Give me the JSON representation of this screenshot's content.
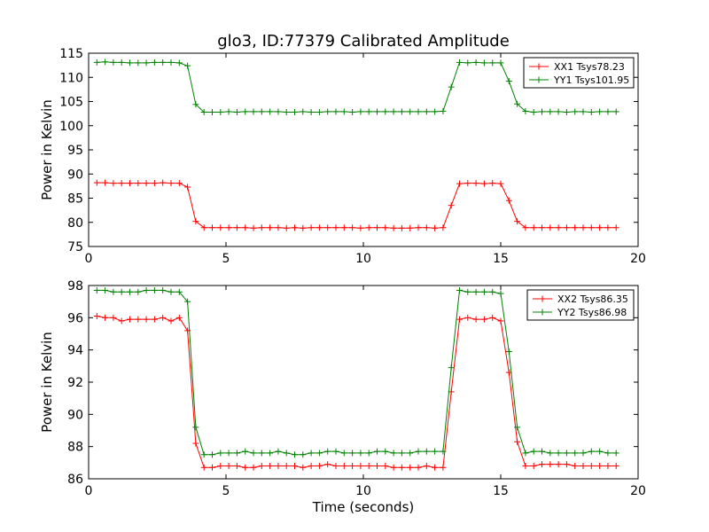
{
  "chart_data": [
    {
      "type": "line",
      "title": "glo3, ID:77379 Calibrated Amplitude",
      "xlabel": "",
      "ylabel": "Power in Kelvin",
      "xlim": [
        0,
        20
      ],
      "ylim": [
        75,
        115
      ],
      "xticks": [
        "0",
        "5",
        "10",
        "15",
        "20"
      ],
      "yticks": [
        "75",
        "80",
        "85",
        "90",
        "95",
        "100",
        "105",
        "110",
        "115"
      ],
      "grid": false,
      "legend": "top-right",
      "series": [
        {
          "name": "XX1 Tsys78.23",
          "color": "#ff0000",
          "x": [
            0.3,
            0.6,
            0.9,
            1.2,
            1.5,
            1.8,
            2.1,
            2.4,
            2.7,
            3.0,
            3.3,
            3.6,
            3.9,
            4.2,
            4.5,
            4.8,
            5.1,
            5.4,
            5.7,
            6.0,
            6.3,
            6.6,
            6.9,
            7.2,
            7.5,
            7.8,
            8.1,
            8.4,
            8.7,
            9.0,
            9.3,
            9.6,
            9.9,
            10.2,
            10.5,
            10.8,
            11.1,
            11.4,
            11.7,
            12.0,
            12.3,
            12.6,
            12.9,
            13.2,
            13.5,
            13.8,
            14.1,
            14.4,
            14.7,
            15.0,
            15.3,
            15.6,
            15.9,
            16.2,
            16.5,
            16.8,
            17.1,
            17.4,
            17.7,
            18.0,
            18.3,
            18.6,
            18.9,
            19.2
          ],
          "y": [
            88.2,
            88.2,
            88.1,
            88.1,
            88.1,
            88.1,
            88.1,
            88.1,
            88.2,
            88.1,
            88.1,
            87.3,
            80.2,
            78.9,
            78.9,
            78.9,
            78.9,
            78.9,
            78.9,
            78.8,
            78.9,
            78.9,
            78.9,
            78.8,
            78.9,
            78.8,
            78.9,
            78.9,
            78.9,
            78.9,
            78.9,
            78.9,
            78.8,
            78.9,
            78.9,
            78.9,
            78.8,
            78.8,
            78.8,
            78.9,
            78.9,
            78.8,
            78.9,
            83.5,
            88.0,
            88.1,
            88.1,
            88.0,
            88.1,
            88.0,
            84.5,
            80.2,
            78.9,
            78.9,
            78.9,
            78.9,
            78.9,
            78.9,
            78.9,
            78.9,
            78.9,
            78.9,
            78.9,
            78.9
          ]
        },
        {
          "name": "YY1 Tsys101.95",
          "color": "#008000",
          "x": [
            0.3,
            0.6,
            0.9,
            1.2,
            1.5,
            1.8,
            2.1,
            2.4,
            2.7,
            3.0,
            3.3,
            3.6,
            3.9,
            4.2,
            4.5,
            4.8,
            5.1,
            5.4,
            5.7,
            6.0,
            6.3,
            6.6,
            6.9,
            7.2,
            7.5,
            7.8,
            8.1,
            8.4,
            8.7,
            9.0,
            9.3,
            9.6,
            9.9,
            10.2,
            10.5,
            10.8,
            11.1,
            11.4,
            11.7,
            12.0,
            12.3,
            12.6,
            12.9,
            13.2,
            13.5,
            13.8,
            14.1,
            14.4,
            14.7,
            15.0,
            15.3,
            15.6,
            15.9,
            16.2,
            16.5,
            16.8,
            17.1,
            17.4,
            17.7,
            18.0,
            18.3,
            18.6,
            18.9,
            19.2
          ],
          "y": [
            113.1,
            113.2,
            113.1,
            113.1,
            113.0,
            113.0,
            113.0,
            113.1,
            113.1,
            113.1,
            113.0,
            112.4,
            104.4,
            102.8,
            102.8,
            102.8,
            102.9,
            102.8,
            102.9,
            102.9,
            102.9,
            102.9,
            102.9,
            102.8,
            102.8,
            102.9,
            102.8,
            102.8,
            102.9,
            102.9,
            102.9,
            102.8,
            102.9,
            102.9,
            102.9,
            102.9,
            102.9,
            102.9,
            102.9,
            102.9,
            102.9,
            102.9,
            103.0,
            108.0,
            113.1,
            113.0,
            113.1,
            113.0,
            113.0,
            113.0,
            109.2,
            104.5,
            103.0,
            102.8,
            102.9,
            102.9,
            102.9,
            102.8,
            102.9,
            102.9,
            102.8,
            102.9,
            102.9,
            102.9
          ]
        }
      ]
    },
    {
      "type": "line",
      "title": "",
      "xlabel": "Time (seconds)",
      "ylabel": "Power in Kelvin",
      "xlim": [
        0,
        20
      ],
      "ylim": [
        86,
        98
      ],
      "xticks": [
        "0",
        "5",
        "10",
        "15",
        "20"
      ],
      "yticks": [
        "86",
        "88",
        "90",
        "92",
        "94",
        "96",
        "98"
      ],
      "grid": false,
      "legend": "top-right",
      "series": [
        {
          "name": "XX2 Tsys86.35",
          "color": "#ff0000",
          "x": [
            0.3,
            0.6,
            0.9,
            1.2,
            1.5,
            1.8,
            2.1,
            2.4,
            2.7,
            3.0,
            3.3,
            3.6,
            3.9,
            4.2,
            4.5,
            4.8,
            5.1,
            5.4,
            5.7,
            6.0,
            6.3,
            6.6,
            6.9,
            7.2,
            7.5,
            7.8,
            8.1,
            8.4,
            8.7,
            9.0,
            9.3,
            9.6,
            9.9,
            10.2,
            10.5,
            10.8,
            11.1,
            11.4,
            11.7,
            12.0,
            12.3,
            12.6,
            12.9,
            13.2,
            13.5,
            13.8,
            14.1,
            14.4,
            14.7,
            15.0,
            15.3,
            15.6,
            15.9,
            16.2,
            16.5,
            16.8,
            17.1,
            17.4,
            17.7,
            18.0,
            18.3,
            18.6,
            18.9,
            19.2
          ],
          "y": [
            96.1,
            96.0,
            96.0,
            95.8,
            95.9,
            95.9,
            95.9,
            95.9,
            96.0,
            95.8,
            96.0,
            95.2,
            88.2,
            86.7,
            86.7,
            86.8,
            86.8,
            86.8,
            86.7,
            86.7,
            86.8,
            86.8,
            86.8,
            86.8,
            86.8,
            86.7,
            86.8,
            86.8,
            86.9,
            86.8,
            86.8,
            86.8,
            86.8,
            86.8,
            86.8,
            86.8,
            86.7,
            86.7,
            86.7,
            86.7,
            86.8,
            86.7,
            86.7,
            91.4,
            95.9,
            96.0,
            95.9,
            95.9,
            96.0,
            95.8,
            92.6,
            88.3,
            86.8,
            86.8,
            86.9,
            86.9,
            86.9,
            86.9,
            86.8,
            86.8,
            86.8,
            86.8,
            86.8,
            86.8
          ]
        },
        {
          "name": "YY2 Tsys86.98",
          "color": "#008000",
          "x": [
            0.3,
            0.6,
            0.9,
            1.2,
            1.5,
            1.8,
            2.1,
            2.4,
            2.7,
            3.0,
            3.3,
            3.6,
            3.9,
            4.2,
            4.5,
            4.8,
            5.1,
            5.4,
            5.7,
            6.0,
            6.3,
            6.6,
            6.9,
            7.2,
            7.5,
            7.8,
            8.1,
            8.4,
            8.7,
            9.0,
            9.3,
            9.6,
            9.9,
            10.2,
            10.5,
            10.8,
            11.1,
            11.4,
            11.7,
            12.0,
            12.3,
            12.6,
            12.9,
            13.2,
            13.5,
            13.8,
            14.1,
            14.4,
            14.7,
            15.0,
            15.3,
            15.6,
            15.9,
            16.2,
            16.5,
            16.8,
            17.1,
            17.4,
            17.7,
            18.0,
            18.3,
            18.6,
            18.9,
            19.2
          ],
          "y": [
            97.7,
            97.7,
            97.6,
            97.6,
            97.6,
            97.6,
            97.7,
            97.7,
            97.7,
            97.6,
            97.6,
            97.0,
            89.2,
            87.5,
            87.5,
            87.6,
            87.6,
            87.6,
            87.7,
            87.6,
            87.6,
            87.6,
            87.7,
            87.6,
            87.5,
            87.5,
            87.6,
            87.6,
            87.7,
            87.7,
            87.6,
            87.6,
            87.6,
            87.6,
            87.7,
            87.7,
            87.6,
            87.6,
            87.6,
            87.7,
            87.7,
            87.7,
            87.7,
            92.9,
            97.7,
            97.6,
            97.6,
            97.6,
            97.6,
            97.5,
            93.9,
            89.2,
            87.6,
            87.7,
            87.7,
            87.6,
            87.6,
            87.6,
            87.6,
            87.6,
            87.7,
            87.7,
            87.6,
            87.6
          ]
        }
      ]
    }
  ]
}
